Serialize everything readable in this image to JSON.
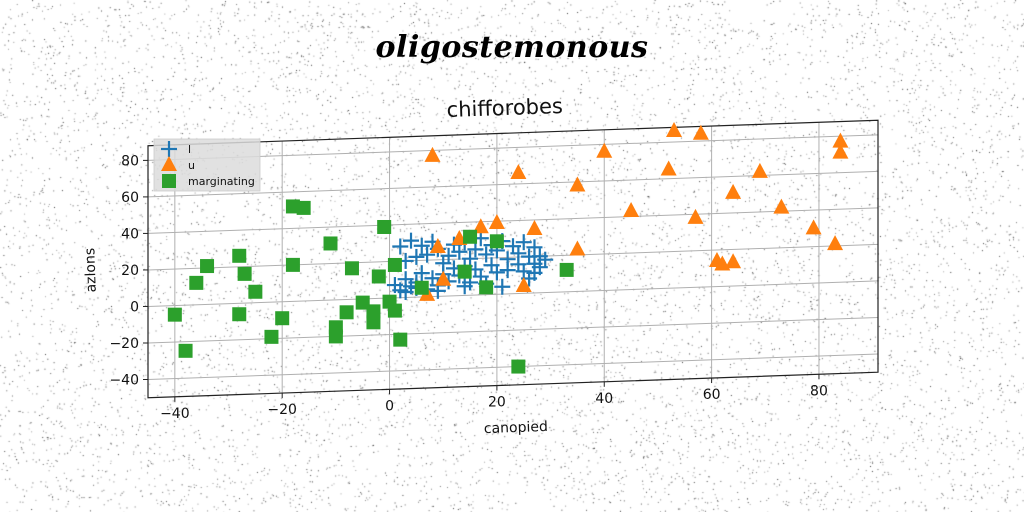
{
  "figure": {
    "suptitle": "oligostemonous"
  },
  "chart_data": {
    "type": "scatter",
    "title": "chifforobes",
    "xlabel": "canopied",
    "ylabel": "azlons",
    "xlim": [
      -45,
      91
    ],
    "ylim": [
      -50,
      88
    ],
    "x_ticks": [
      -40,
      -20,
      0,
      20,
      40,
      60,
      80
    ],
    "y_ticks": [
      -40,
      -20,
      0,
      20,
      40,
      60,
      80
    ],
    "x_tick_labels": [
      "−40",
      "−20",
      "0",
      "20",
      "40",
      "60",
      "80"
    ],
    "y_tick_labels": [
      "−40",
      "−20",
      "0",
      "20",
      "40",
      "60",
      "80"
    ],
    "grid": true,
    "legend_position": "upper-left",
    "series": [
      {
        "name": "l",
        "marker": "plus",
        "color": "#1f77b4",
        "points": [
          [
            2,
            28
          ],
          [
            3,
            20
          ],
          [
            4,
            31
          ],
          [
            5,
            22
          ],
          [
            6,
            28
          ],
          [
            7,
            23
          ],
          [
            8,
            30
          ],
          [
            9,
            26
          ],
          [
            10,
            18
          ],
          [
            11,
            22
          ],
          [
            12,
            28
          ],
          [
            13,
            24
          ],
          [
            14,
            29
          ],
          [
            15,
            20
          ],
          [
            16,
            25
          ],
          [
            17,
            31
          ],
          [
            18,
            22
          ],
          [
            19,
            27
          ],
          [
            20,
            24
          ],
          [
            21,
            29
          ],
          [
            22,
            19
          ],
          [
            23,
            26
          ],
          [
            24,
            22
          ],
          [
            25,
            28
          ],
          [
            26,
            20
          ],
          [
            27,
            25
          ],
          [
            28,
            14
          ],
          [
            27,
            11
          ],
          [
            25,
            12
          ],
          [
            24,
            16
          ],
          [
            22,
            13
          ],
          [
            20,
            12
          ],
          [
            19,
            16
          ],
          [
            17,
            10
          ],
          [
            16,
            14
          ],
          [
            15,
            7
          ],
          [
            13,
            11
          ],
          [
            12,
            15
          ],
          [
            11,
            8
          ],
          [
            10,
            12
          ],
          [
            9,
            6
          ],
          [
            8,
            10
          ],
          [
            6,
            13
          ],
          [
            5,
            8
          ],
          [
            4,
            6
          ],
          [
            3,
            10
          ],
          [
            2,
            4
          ],
          [
            1,
            7
          ],
          [
            3,
            3
          ],
          [
            5,
            5
          ],
          [
            7,
            4
          ],
          [
            9,
            3
          ],
          [
            14,
            5
          ],
          [
            18,
            6
          ],
          [
            21,
            4
          ],
          [
            26,
            8
          ],
          [
            27,
            16
          ],
          [
            28,
            20
          ],
          [
            29,
            18
          ],
          [
            14,
            16
          ]
        ]
      },
      {
        "name": "u",
        "marker": "triangle",
        "color": "#ff7f0e",
        "points": [
          [
            8,
            77
          ],
          [
            7,
            1
          ],
          [
            9,
            27
          ],
          [
            10,
            9
          ],
          [
            13,
            31
          ],
          [
            17,
            37
          ],
          [
            20,
            39
          ],
          [
            25,
            4
          ],
          [
            27,
            35
          ],
          [
            24,
            66
          ],
          [
            35,
            58
          ],
          [
            35,
            23
          ],
          [
            40,
            76
          ],
          [
            45,
            43
          ],
          [
            52,
            65
          ],
          [
            53,
            86
          ],
          [
            57,
            38
          ],
          [
            58,
            84
          ],
          [
            64,
            51
          ],
          [
            61,
            14
          ],
          [
            62,
            12
          ],
          [
            64,
            13
          ],
          [
            69,
            62
          ],
          [
            73,
            42
          ],
          [
            79,
            30
          ],
          [
            83,
            21
          ],
          [
            84,
            77
          ],
          [
            84,
            71
          ]
        ]
      },
      {
        "name": "marginating",
        "marker": "square",
        "color": "#2ca02c",
        "points": [
          [
            -40,
            -5
          ],
          [
            -38,
            -25
          ],
          [
            -36,
            12
          ],
          [
            -34,
            21
          ],
          [
            -28,
            26
          ],
          [
            -27,
            16
          ],
          [
            -28,
            -6
          ],
          [
            -25,
            6
          ],
          [
            -22,
            -19
          ],
          [
            -20,
            -9
          ],
          [
            -18,
            20
          ],
          [
            -18,
            52
          ],
          [
            -16,
            51
          ],
          [
            -11,
            31
          ],
          [
            -10,
            -20
          ],
          [
            -10,
            -15
          ],
          [
            -8,
            -7
          ],
          [
            -7,
            17
          ],
          [
            -5,
            -2
          ],
          [
            -3,
            -13
          ],
          [
            -3,
            -7
          ],
          [
            -2,
            12
          ],
          [
            -1,
            39
          ],
          [
            0,
            -2
          ],
          [
            1,
            18
          ],
          [
            1,
            -7
          ],
          [
            2,
            -23
          ],
          [
            6,
            5
          ],
          [
            14,
            13
          ],
          [
            15,
            32
          ],
          [
            18,
            4
          ],
          [
            20,
            29
          ],
          [
            24,
            -40
          ],
          [
            33,
            12
          ]
        ]
      }
    ]
  }
}
